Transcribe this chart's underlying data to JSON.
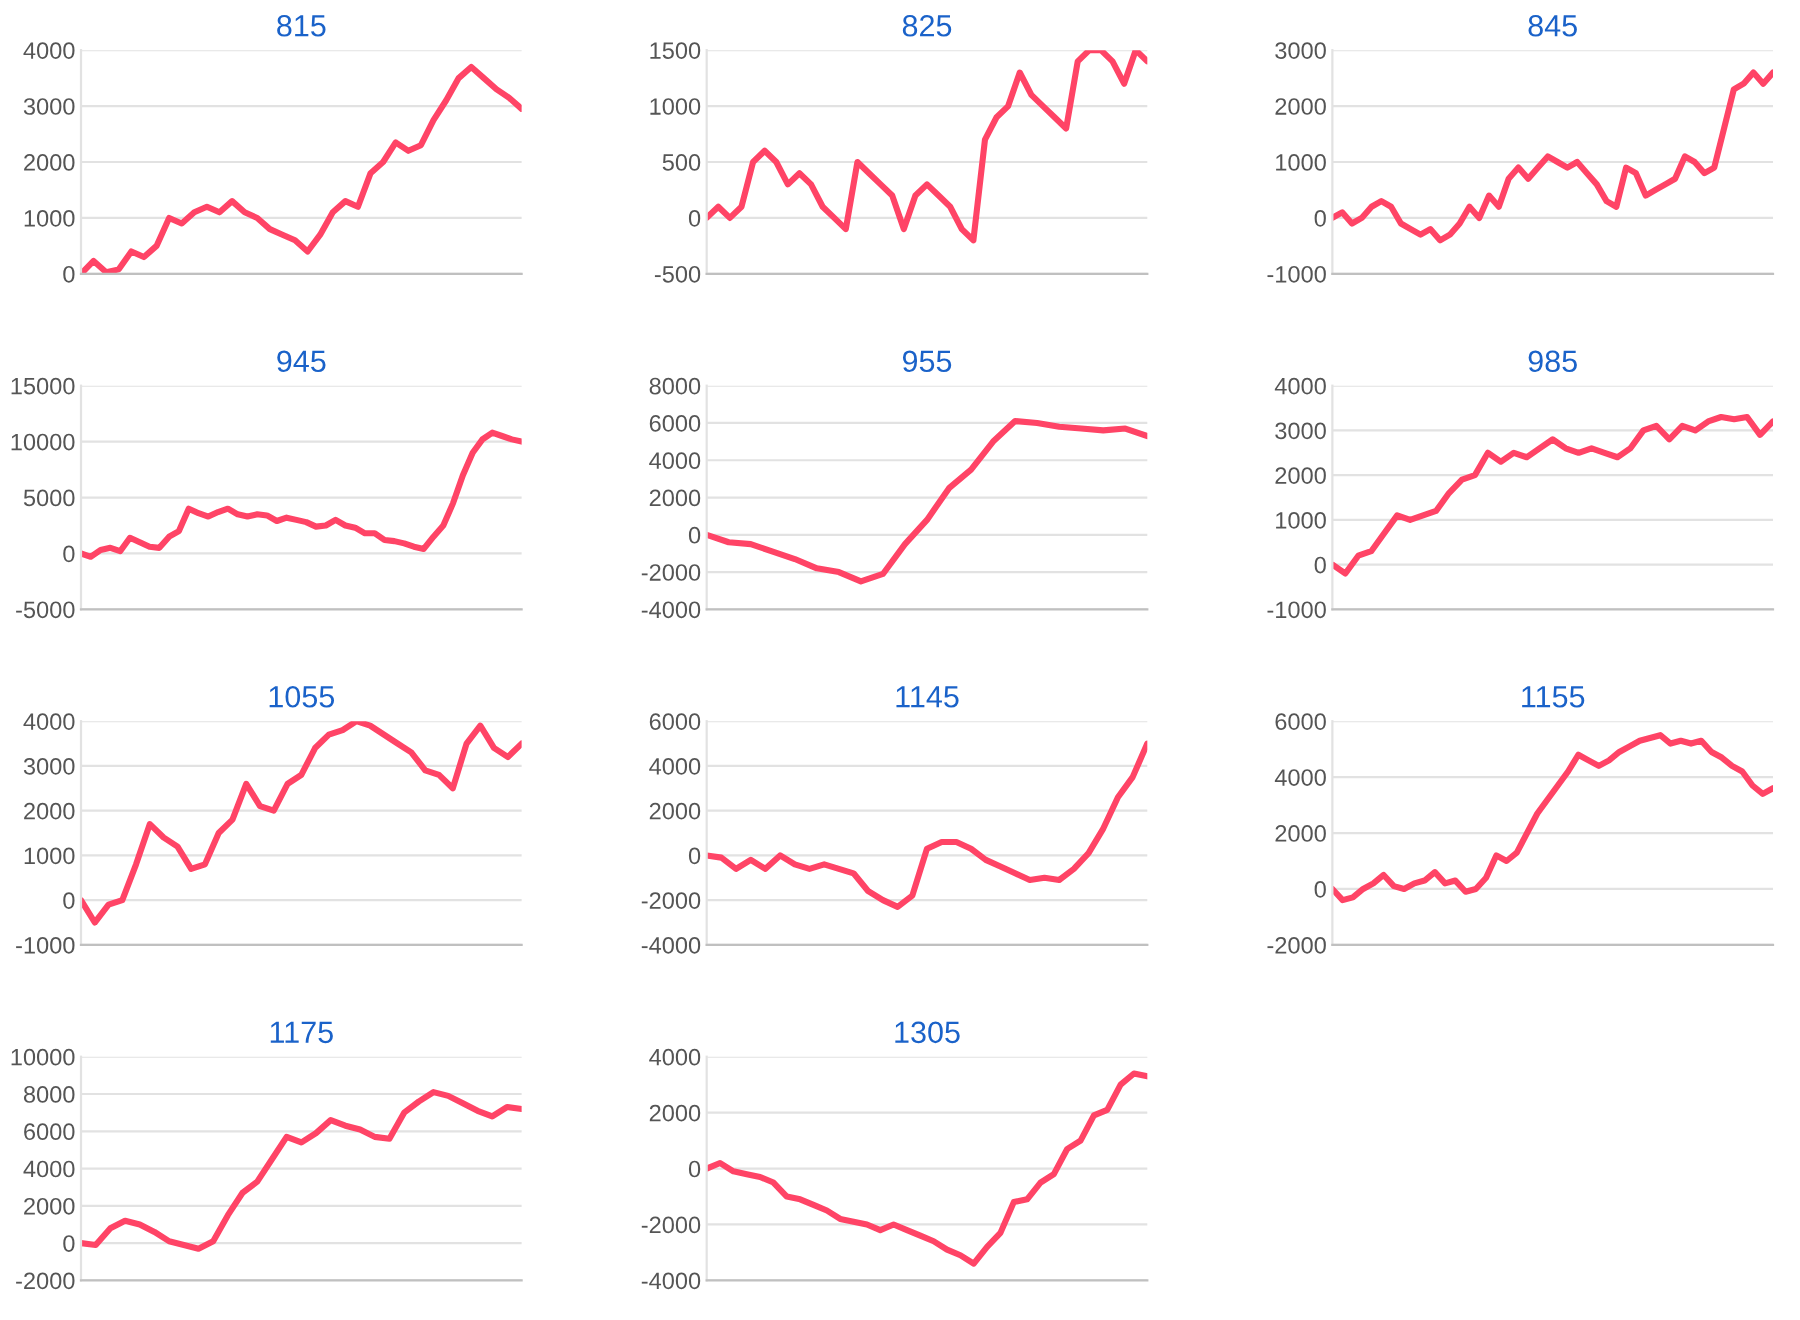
{
  "chart_data": [
    {
      "type": "line",
      "title": "815",
      "color": "#ff4466",
      "grid": "y",
      "tick_labels": "y",
      "ylim": [
        0,
        4000
      ],
      "yticks": [
        0,
        1000,
        2000,
        3000,
        4000
      ],
      "categories": [
        null,
        null,
        null,
        null,
        null,
        null,
        null,
        null,
        null,
        null,
        null,
        null,
        null,
        null,
        null,
        null,
        null,
        null,
        null,
        null,
        null,
        null,
        null,
        null,
        null,
        null,
        null,
        null,
        null,
        null,
        null,
        null,
        null,
        null,
        null,
        null
      ],
      "values": [
        0,
        230,
        30,
        80,
        400,
        300,
        500,
        1000,
        900,
        1100,
        1200,
        1100,
        1300,
        1100,
        1000,
        800,
        700,
        600,
        400,
        700,
        1100,
        1300,
        1200,
        1800,
        2000,
        2350,
        2200,
        2300,
        2750,
        3100,
        3500,
        3700,
        3500,
        3300,
        3150,
        2950
      ]
    },
    {
      "type": "line",
      "title": "825",
      "color": "#ff4466",
      "grid": "y",
      "tick_labels": "y",
      "ylim": [
        -500,
        1500
      ],
      "yticks": [
        -500,
        0,
        500,
        1000,
        1500
      ],
      "categories": [
        null,
        null,
        null,
        null,
        null,
        null,
        null,
        null,
        null,
        null,
        null,
        null,
        null,
        null,
        null,
        null,
        null,
        null,
        null,
        null,
        null,
        null,
        null,
        null,
        null,
        null,
        null,
        null,
        null,
        null,
        null,
        null,
        null,
        null,
        null,
        null,
        null,
        null,
        null
      ],
      "values": [
        0,
        100,
        0,
        100,
        500,
        600,
        500,
        300,
        400,
        300,
        100,
        0,
        -100,
        500,
        400,
        300,
        200,
        -100,
        200,
        300,
        200,
        100,
        -100,
        -200,
        700,
        900,
        1000,
        1300,
        1100,
        1000,
        900,
        800,
        1400,
        1500,
        1500,
        1400,
        1200,
        1500,
        1400
      ]
    },
    {
      "type": "line",
      "title": "845",
      "color": "#ff4466",
      "grid": "y",
      "tick_labels": "y",
      "ylim": [
        -1000,
        3000
      ],
      "yticks": [
        -1000,
        0,
        1000,
        2000,
        3000
      ],
      "categories": [
        null,
        null,
        null,
        null,
        null,
        null,
        null,
        null,
        null,
        null,
        null,
        null,
        null,
        null,
        null,
        null,
        null,
        null,
        null,
        null,
        null,
        null,
        null,
        null,
        null,
        null,
        null,
        null,
        null,
        null,
        null,
        null,
        null,
        null,
        null,
        null,
        null,
        null,
        null,
        null,
        null,
        null,
        null,
        null,
        null,
        null
      ],
      "values": [
        0,
        100,
        -100,
        0,
        200,
        300,
        200,
        -100,
        -200,
        -300,
        -200,
        -400,
        -300,
        -100,
        200,
        0,
        400,
        200,
        700,
        900,
        700,
        900,
        1100,
        1000,
        900,
        1000,
        800,
        600,
        300,
        200,
        900,
        800,
        400,
        500,
        600,
        700,
        1100,
        1000,
        800,
        900,
        1600,
        2300,
        2400,
        2600,
        2400,
        2600
      ]
    },
    {
      "type": "line",
      "title": "945",
      "color": "#ff4466",
      "grid": "y",
      "tick_labels": "y",
      "ylim": [
        -5000,
        15000
      ],
      "yticks": [
        -5000,
        0,
        5000,
        10000,
        15000
      ],
      "categories": [
        null,
        null,
        null,
        null,
        null,
        null,
        null,
        null,
        null,
        null,
        null,
        null,
        null,
        null,
        null,
        null,
        null,
        null,
        null,
        null,
        null,
        null,
        null,
        null,
        null,
        null,
        null,
        null,
        null,
        null,
        null,
        null,
        null,
        null,
        null,
        null,
        null,
        null,
        null,
        null,
        null,
        null,
        null,
        null,
        null,
        null
      ],
      "values": [
        0,
        -300,
        300,
        500,
        200,
        1400,
        1000,
        600,
        500,
        1500,
        2000,
        4000,
        3600,
        3300,
        3700,
        4000,
        3500,
        3300,
        3500,
        3400,
        2900,
        3200,
        3000,
        2800,
        2400,
        2500,
        3000,
        2500,
        2300,
        1800,
        1800,
        1200,
        1100,
        900,
        600,
        400,
        1500,
        2500,
        4500,
        7000,
        9000,
        10200,
        10800,
        10500,
        10200,
        10000
      ]
    },
    {
      "type": "line",
      "title": "955",
      "color": "#ff4466",
      "grid": "y",
      "tick_labels": "y",
      "ylim": [
        -4000,
        8000
      ],
      "yticks": [
        -4000,
        -2000,
        0,
        2000,
        4000,
        6000,
        8000
      ],
      "categories": [
        null,
        null,
        null,
        null,
        null,
        null,
        null,
        null,
        null,
        null,
        null,
        null,
        null,
        null,
        null,
        null,
        null,
        null,
        null,
        null,
        null
      ],
      "values": [
        0,
        -400,
        -500,
        -900,
        -1300,
        -1800,
        -2000,
        -2500,
        -2100,
        -500,
        800,
        2500,
        3500,
        5000,
        6100,
        6000,
        5800,
        5700,
        5600,
        5700,
        5300
      ]
    },
    {
      "type": "line",
      "title": "985",
      "color": "#ff4466",
      "grid": "y",
      "tick_labels": "y",
      "ylim": [
        -1000,
        4000
      ],
      "yticks": [
        -1000,
        0,
        1000,
        2000,
        3000,
        4000
      ],
      "categories": [
        null,
        null,
        null,
        null,
        null,
        null,
        null,
        null,
        null,
        null,
        null,
        null,
        null,
        null,
        null,
        null,
        null,
        null,
        null,
        null,
        null,
        null,
        null,
        null,
        null,
        null,
        null,
        null,
        null,
        null,
        null,
        null,
        null,
        null,
        null
      ],
      "values": [
        0,
        -200,
        200,
        300,
        700,
        1100,
        1000,
        1100,
        1200,
        1600,
        1900,
        2000,
        2500,
        2300,
        2500,
        2400,
        2600,
        2800,
        2600,
        2500,
        2600,
        2500,
        2400,
        2600,
        3000,
        3100,
        2800,
        3100,
        3000,
        3200,
        3300,
        3250,
        3300,
        2900,
        3200
      ]
    },
    {
      "type": "line",
      "title": "1055",
      "color": "#ff4466",
      "grid": "y",
      "tick_labels": "y",
      "ylim": [
        -1000,
        4000
      ],
      "yticks": [
        -1000,
        0,
        1000,
        2000,
        3000,
        4000
      ],
      "categories": [
        null,
        null,
        null,
        null,
        null,
        null,
        null,
        null,
        null,
        null,
        null,
        null,
        null,
        null,
        null,
        null,
        null,
        null,
        null,
        null,
        null,
        null,
        null,
        null,
        null,
        null,
        null,
        null,
        null,
        null,
        null,
        null,
        null
      ],
      "values": [
        0,
        -500,
        -100,
        0,
        800,
        1700,
        1400,
        1200,
        700,
        800,
        1500,
        1800,
        2600,
        2100,
        2000,
        2600,
        2800,
        3400,
        3700,
        3800,
        4000,
        3900,
        3700,
        3500,
        3300,
        2900,
        2800,
        2500,
        3500,
        3900,
        3400,
        3200,
        3500
      ]
    },
    {
      "type": "line",
      "title": "1145",
      "color": "#ff4466",
      "grid": "y",
      "tick_labels": "y",
      "ylim": [
        -4000,
        6000
      ],
      "yticks": [
        -4000,
        -2000,
        0,
        2000,
        4000,
        6000
      ],
      "categories": [
        null,
        null,
        null,
        null,
        null,
        null,
        null,
        null,
        null,
        null,
        null,
        null,
        null,
        null,
        null,
        null,
        null,
        null,
        null,
        null,
        null,
        null,
        null,
        null,
        null,
        null,
        null,
        null,
        null,
        null,
        null
      ],
      "values": [
        0,
        -100,
        -600,
        -200,
        -600,
        0,
        -400,
        -600,
        -400,
        -600,
        -800,
        -1600,
        -2000,
        -2300,
        -1800,
        300,
        600,
        600,
        300,
        -200,
        -500,
        -800,
        -1100,
        -1000,
        -1100,
        -600,
        100,
        1200,
        2600,
        3500,
        5000
      ]
    },
    {
      "type": "line",
      "title": "1155",
      "color": "#ff4466",
      "grid": "y",
      "tick_labels": "y",
      "ylim": [
        -2000,
        6000
      ],
      "yticks": [
        -2000,
        0,
        2000,
        4000,
        6000
      ],
      "categories": [
        null,
        null,
        null,
        null,
        null,
        null,
        null,
        null,
        null,
        null,
        null,
        null,
        null,
        null,
        null,
        null,
        null,
        null,
        null,
        null,
        null,
        null,
        null,
        null,
        null,
        null,
        null,
        null,
        null,
        null,
        null,
        null,
        null,
        null,
        null,
        null,
        null,
        null,
        null,
        null,
        null,
        null,
        null,
        null
      ],
      "values": [
        0,
        -400,
        -300,
        0,
        200,
        500,
        100,
        0,
        200,
        300,
        600,
        200,
        300,
        -100,
        0,
        400,
        1200,
        1000,
        1300,
        2000,
        2700,
        3200,
        3700,
        4200,
        4800,
        4600,
        4400,
        4600,
        4900,
        5100,
        5300,
        5400,
        5500,
        5200,
        5300,
        5200,
        5300,
        4900,
        4700,
        4400,
        4200,
        3700,
        3400,
        3600
      ]
    },
    {
      "type": "line",
      "title": "1175",
      "color": "#ff4466",
      "grid": "y",
      "tick_labels": "y",
      "ylim": [
        -2000,
        10000
      ],
      "yticks": [
        -2000,
        0,
        2000,
        4000,
        6000,
        8000,
        10000
      ],
      "categories": [
        null,
        null,
        null,
        null,
        null,
        null,
        null,
        null,
        null,
        null,
        null,
        null,
        null,
        null,
        null,
        null,
        null,
        null,
        null,
        null,
        null,
        null,
        null,
        null,
        null,
        null,
        null,
        null,
        null,
        null,
        null
      ],
      "values": [
        0,
        -100,
        800,
        1200,
        1000,
        600,
        100,
        -100,
        -300,
        100,
        1500,
        2700,
        3300,
        4500,
        5700,
        5400,
        5900,
        6600,
        6300,
        6100,
        5700,
        5600,
        7000,
        7600,
        8100,
        7900,
        7500,
        7100,
        6800,
        7300,
        7200
      ]
    },
    {
      "type": "line",
      "title": "1305",
      "color": "#ff4466",
      "grid": "y",
      "tick_labels": "y",
      "ylim": [
        -4000,
        4000
      ],
      "yticks": [
        -4000,
        -2000,
        0,
        2000,
        4000
      ],
      "categories": [
        null,
        null,
        null,
        null,
        null,
        null,
        null,
        null,
        null,
        null,
        null,
        null,
        null,
        null,
        null,
        null,
        null,
        null,
        null,
        null,
        null,
        null,
        null,
        null,
        null,
        null,
        null,
        null,
        null,
        null,
        null,
        null,
        null,
        null
      ],
      "values": [
        0,
        200,
        -100,
        -200,
        -300,
        -500,
        -1000,
        -1100,
        -1300,
        -1500,
        -1800,
        -1900,
        -2000,
        -2200,
        -2000,
        -2200,
        -2400,
        -2600,
        -2900,
        -3100,
        -3400,
        -2800,
        -2300,
        -1200,
        -1100,
        -500,
        -200,
        700,
        1000,
        1900,
        2100,
        3000,
        3400,
        3300
      ]
    }
  ]
}
